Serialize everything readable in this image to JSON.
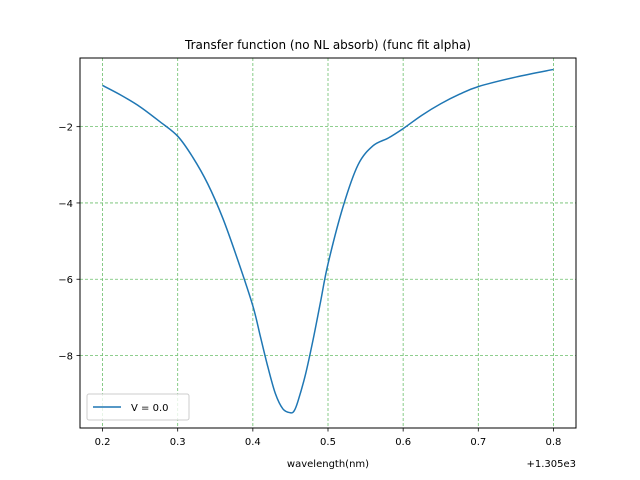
{
  "chart_data": {
    "type": "line",
    "title": "Transfer function (no NL absorb) (func fit alpha)",
    "xlabel": "wavelength(nm)",
    "ylabel": "",
    "x_offset_label": "+1.305e3",
    "xlim": [
      0.17,
      0.83
    ],
    "ylim": [
      -9.9,
      -0.2
    ],
    "xticks": [
      0.2,
      0.3,
      0.4,
      0.5,
      0.6,
      0.7,
      0.8
    ],
    "xtick_labels": [
      "0.2",
      "0.3",
      "0.4",
      "0.5",
      "0.6",
      "0.7",
      "0.8"
    ],
    "yticks": [
      -2,
      -4,
      -6,
      -8
    ],
    "ytick_labels": [
      "−2",
      "−4",
      "−6",
      "−8"
    ],
    "grid": true,
    "grid_color": "#6bbf6b",
    "legend_position": "lower-left",
    "series": [
      {
        "name": "V = 0.0",
        "color": "#1f77b4",
        "x": [
          0.2,
          0.225,
          0.25,
          0.275,
          0.3,
          0.32,
          0.34,
          0.36,
          0.38,
          0.4,
          0.41,
          0.42,
          0.43,
          0.44,
          0.45,
          0.455,
          0.46,
          0.47,
          0.48,
          0.49,
          0.5,
          0.52,
          0.54,
          0.56,
          0.58,
          0.6,
          0.625,
          0.65,
          0.675,
          0.7,
          0.75,
          0.8
        ],
        "y": [
          -0.92,
          -1.18,
          -1.48,
          -1.85,
          -2.25,
          -2.8,
          -3.5,
          -4.4,
          -5.5,
          -6.7,
          -7.5,
          -8.3,
          -9.0,
          -9.4,
          -9.5,
          -9.45,
          -9.2,
          -8.5,
          -7.6,
          -6.6,
          -5.6,
          -4.1,
          -3.0,
          -2.5,
          -2.3,
          -2.05,
          -1.7,
          -1.4,
          -1.15,
          -0.95,
          -0.7,
          -0.5
        ]
      }
    ]
  }
}
